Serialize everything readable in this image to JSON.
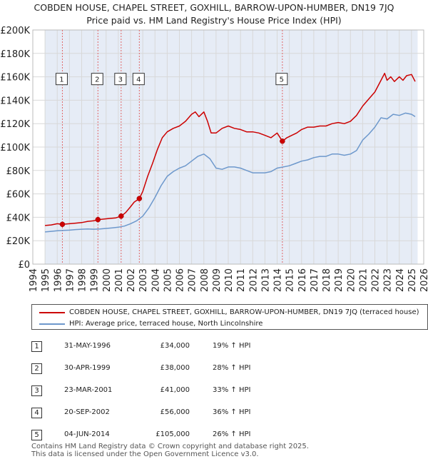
{
  "title_line1": "COBDEN HOUSE, CHAPEL STREET, GOXHILL, BARROW-UPON-HUMBER, DN19 7JQ",
  "title_line2": "Price paid vs. HM Land Registry's House Price Index (HPI)",
  "colors": {
    "property": "#cc0000",
    "hpi": "#6d98cc",
    "shade": "#e6ecf6",
    "grid": "#d8d8d8",
    "marker_line": "#e06666"
  },
  "legend": {
    "property_label": "COBDEN HOUSE, CHAPEL STREET, GOXHILL, BARROW-UPON-HUMBER, DN19 7JQ (terraced house)",
    "hpi_label": "HPI: Average price, terraced house, North Lincolnshire"
  },
  "sales": [
    {
      "num": "1",
      "date": "31-MAY-1996",
      "price": "£34,000",
      "hpi": "19% ↑ HPI"
    },
    {
      "num": "2",
      "date": "30-APR-1999",
      "price": "£38,000",
      "hpi": "28% ↑ HPI"
    },
    {
      "num": "3",
      "date": "23-MAR-2001",
      "price": "£41,000",
      "hpi": "33% ↑ HPI"
    },
    {
      "num": "4",
      "date": "20-SEP-2002",
      "price": "£56,000",
      "hpi": "36% ↑ HPI"
    },
    {
      "num": "5",
      "date": "04-JUN-2014",
      "price": "£105,000",
      "hpi": "26% ↑ HPI"
    }
  ],
  "footer_line1": "Contains HM Land Registry data © Crown copyright and database right 2025.",
  "footer_line2": "This data is licensed under the Open Government Licence v3.0.",
  "chart_data": {
    "type": "line",
    "title": "COBDEN HOUSE, CHAPEL STREET, GOXHILL, BARROW-UPON-HUMBER, DN19 7JQ — Price paid vs. HM Land Registry's House Price Index (HPI)",
    "xlabel": "",
    "ylabel": "",
    "xlim": [
      1994,
      2026
    ],
    "ylim": [
      0,
      200000
    ],
    "data_range": [
      1995,
      2025.5
    ],
    "x_ticks": [
      1994,
      1995,
      1996,
      1997,
      1998,
      1999,
      2000,
      2001,
      2002,
      2003,
      2004,
      2005,
      2006,
      2007,
      2008,
      2009,
      2010,
      2011,
      2012,
      2013,
      2014,
      2015,
      2016,
      2017,
      2018,
      2019,
      2020,
      2021,
      2022,
      2023,
      2024,
      2025,
      2026
    ],
    "y_ticks": [
      {
        "value": 0,
        "label": "£0"
      },
      {
        "value": 20000,
        "label": "£20K"
      },
      {
        "value": 40000,
        "label": "£40K"
      },
      {
        "value": 60000,
        "label": "£60K"
      },
      {
        "value": 80000,
        "label": "£80K"
      },
      {
        "value": 100000,
        "label": "£100K"
      },
      {
        "value": 120000,
        "label": "£120K"
      },
      {
        "value": 140000,
        "label": "£140K"
      },
      {
        "value": 160000,
        "label": "£160K"
      },
      {
        "value": 180000,
        "label": "£180K"
      },
      {
        "value": 200000,
        "label": "£200K"
      }
    ],
    "grid": true,
    "series": [
      {
        "name": "COBDEN HOUSE, CHAPEL STREET, GOXHILL, BARROW-UPON-HUMBER, DN19 7JQ (terraced house)",
        "color": "#cc0000",
        "x": [
          1995.0,
          1995.5,
          1996.0,
          1996.42,
          1997.0,
          1997.5,
          1998.0,
          1998.5,
          1999.0,
          1999.33,
          1999.8,
          2000.3,
          2000.8,
          2001.23,
          2001.6,
          2002.0,
          2002.3,
          2002.72,
          2003.0,
          2003.4,
          2003.8,
          2004.2,
          2004.6,
          2005.0,
          2005.5,
          2006.0,
          2006.5,
          2007.0,
          2007.3,
          2007.6,
          2008.0,
          2008.3,
          2008.6,
          2009.0,
          2009.5,
          2010.0,
          2010.5,
          2011.0,
          2011.5,
          2012.0,
          2012.5,
          2013.0,
          2013.5,
          2014.0,
          2014.43,
          2014.8,
          2015.2,
          2015.6,
          2016.0,
          2016.5,
          2017.0,
          2017.5,
          2018.0,
          2018.5,
          2019.0,
          2019.5,
          2020.0,
          2020.5,
          2021.0,
          2021.5,
          2022.0,
          2022.5,
          2022.8,
          2023.0,
          2023.3,
          2023.6,
          2024.0,
          2024.3,
          2024.6,
          2025.0,
          2025.3
        ],
        "values": [
          33000,
          33500,
          34500,
          34000,
          34500,
          35000,
          35500,
          36500,
          37000,
          38000,
          38500,
          39000,
          39500,
          41000,
          44000,
          49000,
          53000,
          56000,
          62000,
          75000,
          86000,
          98000,
          108000,
          113000,
          116000,
          118000,
          122000,
          128000,
          130000,
          126000,
          130000,
          122000,
          112000,
          112000,
          116000,
          118000,
          116000,
          115000,
          113000,
          113000,
          112000,
          110000,
          108000,
          112000,
          105000,
          108000,
          110000,
          112000,
          115000,
          117000,
          117000,
          118000,
          118000,
          120000,
          121000,
          120000,
          122000,
          127000,
          135000,
          141000,
          147000,
          157000,
          163000,
          157000,
          160000,
          156000,
          160000,
          157000,
          161000,
          162000,
          156000
        ]
      },
      {
        "name": "HPI: Average price, terraced house, North Lincolnshire",
        "color": "#6d98cc",
        "x": [
          1995.0,
          1995.5,
          1996.0,
          1996.5,
          1997.0,
          1997.5,
          1998.0,
          1998.5,
          1999.0,
          1999.5,
          2000.0,
          2000.5,
          2001.0,
          2001.5,
          2002.0,
          2002.5,
          2003.0,
          2003.5,
          2004.0,
          2004.5,
          2005.0,
          2005.5,
          2006.0,
          2006.5,
          2007.0,
          2007.5,
          2008.0,
          2008.5,
          2009.0,
          2009.5,
          2010.0,
          2010.5,
          2011.0,
          2011.5,
          2012.0,
          2012.5,
          2013.0,
          2013.5,
          2014.0,
          2014.5,
          2015.0,
          2015.5,
          2016.0,
          2016.5,
          2017.0,
          2017.5,
          2018.0,
          2018.5,
          2019.0,
          2019.5,
          2020.0,
          2020.5,
          2021.0,
          2021.5,
          2022.0,
          2022.5,
          2023.0,
          2023.5,
          2024.0,
          2024.5,
          2025.0,
          2025.3
        ],
        "values": [
          27500,
          28000,
          28500,
          28800,
          29000,
          29500,
          29800,
          30000,
          29800,
          30000,
          30500,
          31000,
          31500,
          32500,
          34500,
          37000,
          41000,
          48000,
          57000,
          67000,
          75000,
          79000,
          82000,
          84000,
          88000,
          92000,
          94000,
          90000,
          82000,
          81000,
          83000,
          83000,
          82000,
          80000,
          78000,
          78000,
          78000,
          79000,
          82000,
          83000,
          84000,
          86000,
          88000,
          89000,
          91000,
          92000,
          92000,
          94000,
          94000,
          93000,
          94000,
          97000,
          106000,
          111000,
          117000,
          125000,
          124000,
          128000,
          127000,
          129000,
          128000,
          126000
        ]
      }
    ],
    "annotations": [
      {
        "num": "1",
        "x": 1996.42,
        "price": 34000
      },
      {
        "num": "2",
        "x": 1999.33,
        "price": 38000
      },
      {
        "num": "3",
        "x": 2001.23,
        "price": 41000
      },
      {
        "num": "4",
        "x": 2002.72,
        "price": 56000
      },
      {
        "num": "5",
        "x": 2014.43,
        "price": 105000
      }
    ]
  }
}
